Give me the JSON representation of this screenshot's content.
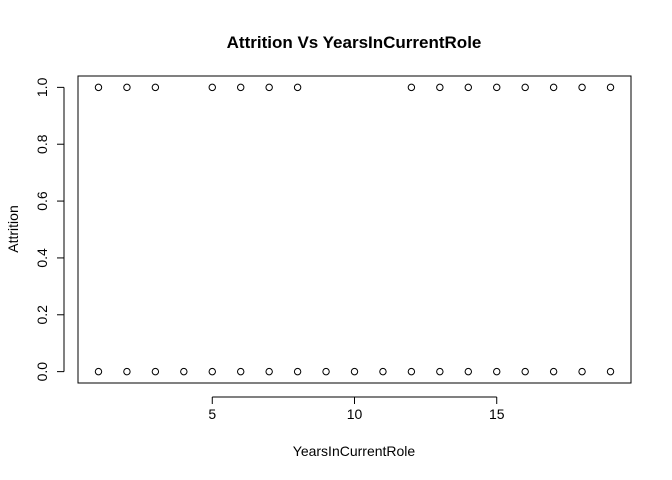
{
  "chart_data": {
    "type": "scatter",
    "title": "Attrition Vs YearsInCurrentRole",
    "xlabel": "YearsInCurrentRole",
    "ylabel": "Attrition",
    "xlim": [
      0.28,
      19.72
    ],
    "ylim": [
      -0.04,
      1.04
    ],
    "xticks": [
      5,
      10,
      15
    ],
    "yticks": [
      0.0,
      0.2,
      0.4,
      0.6,
      0.8,
      1.0
    ],
    "ytick_labels": [
      "0.0",
      "0.2",
      "0.4",
      "0.6",
      "0.8",
      "1.0"
    ],
    "grid": false,
    "series": [
      {
        "marker": "open-circle",
        "color": "#000000",
        "points": [
          {
            "x": 1,
            "y": 0
          },
          {
            "x": 2,
            "y": 0
          },
          {
            "x": 3,
            "y": 0
          },
          {
            "x": 4,
            "y": 0
          },
          {
            "x": 5,
            "y": 0
          },
          {
            "x": 6,
            "y": 0
          },
          {
            "x": 7,
            "y": 0
          },
          {
            "x": 8,
            "y": 0
          },
          {
            "x": 9,
            "y": 0
          },
          {
            "x": 10,
            "y": 0
          },
          {
            "x": 11,
            "y": 0
          },
          {
            "x": 12,
            "y": 0
          },
          {
            "x": 13,
            "y": 0
          },
          {
            "x": 14,
            "y": 0
          },
          {
            "x": 15,
            "y": 0
          },
          {
            "x": 16,
            "y": 0
          },
          {
            "x": 17,
            "y": 0
          },
          {
            "x": 18,
            "y": 0
          },
          {
            "x": 19,
            "y": 0
          },
          {
            "x": 1,
            "y": 1
          },
          {
            "x": 2,
            "y": 1
          },
          {
            "x": 3,
            "y": 1
          },
          {
            "x": 5,
            "y": 1
          },
          {
            "x": 6,
            "y": 1
          },
          {
            "x": 7,
            "y": 1
          },
          {
            "x": 8,
            "y": 1
          },
          {
            "x": 12,
            "y": 1
          },
          {
            "x": 13,
            "y": 1
          },
          {
            "x": 14,
            "y": 1
          },
          {
            "x": 15,
            "y": 1
          },
          {
            "x": 16,
            "y": 1
          },
          {
            "x": 17,
            "y": 1
          },
          {
            "x": 18,
            "y": 1
          },
          {
            "x": 19,
            "y": 1
          }
        ]
      }
    ]
  }
}
